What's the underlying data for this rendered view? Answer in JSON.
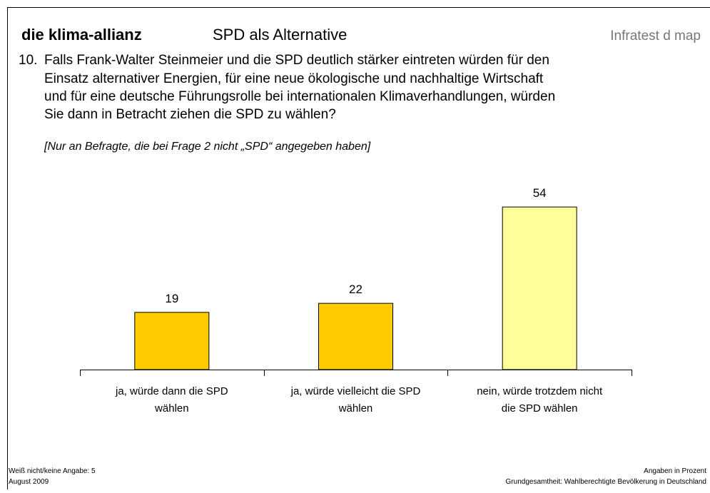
{
  "header": {
    "brand": "die klima-allianz",
    "title": "SPD als Alternative",
    "source": "Infratest d map"
  },
  "question": {
    "number": "10.",
    "lines": [
      "Falls Frank-Walter Steinmeier und die SPD deutlich stärker eintreten würden für den",
      "Einsatz alternativer Energien, für eine neue ökologische und nachhaltige Wirtschaft",
      "und für eine deutsche Führungsrolle bei internationalen Klimaverhandlungen, würden",
      "Sie dann in Betracht ziehen die SPD zu wählen?"
    ],
    "note": "[Nur an Befragte, die bei Frage 2 nicht „SPD“ angegeben haben]"
  },
  "chart_data": {
    "type": "bar",
    "categories": [
      "ja, würde dann die SPD\nwählen",
      "ja, würde vielleicht die SPD\nwählen",
      "nein, würde trotzdem nicht\ndie SPD wählen"
    ],
    "values": [
      19,
      22,
      54
    ],
    "colors": [
      "#ffcc00",
      "#ffcc00",
      "#ffff99"
    ]
  },
  "footer": {
    "left": [
      "Weiß nicht/keine Angabe: 5",
      "August 2009"
    ],
    "right": [
      "Angaben in Prozent",
      "Grundgesamtheit: Wahlberechtigte Bevölkerung in Deutschland"
    ]
  }
}
